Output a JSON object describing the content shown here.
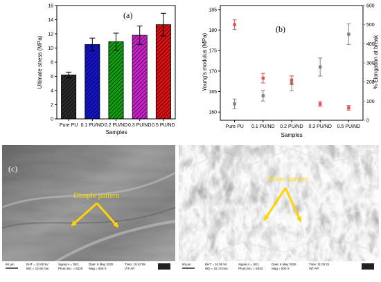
{
  "colors": {
    "pink_axis": "#e06060",
    "arrow": "#ffd400",
    "bars": [
      "#2b2b2b",
      "#1414c8",
      "#10a010",
      "#cc22cc",
      "#dd1111"
    ]
  },
  "chart_data": [
    {
      "type": "bar",
      "panel_label": "(a)",
      "categories": [
        "Pure PU",
        "0.1 PU/ND",
        "0.2 PU/ND",
        "0.3 PU/ND",
        "0.5 PU/ND"
      ],
      "values": [
        6.2,
        10.5,
        10.9,
        11.8,
        13.3
      ],
      "errors": [
        0.4,
        0.9,
        1.2,
        1.3,
        1.6
      ],
      "xlabel": "Samples",
      "ylabel": "Ultimate stress (MPa)",
      "ylim": [
        0,
        16
      ],
      "yticks": [
        "0",
        "2",
        "4",
        "6",
        "8",
        "10",
        "12",
        "14",
        "16"
      ],
      "grid": false
    },
    {
      "type": "scatter",
      "panel_label": "(b)",
      "categories": [
        "Pure PU",
        "0.1 PU/ND",
        "0.2 PU/ND",
        "0.3 PU/ND",
        "0.5 PU/ND"
      ],
      "xlabel": "Samples",
      "ylabel_left": "Young's modulus (MPa)",
      "ylabel_right": "% Elongation at break",
      "ylim_left": [
        158,
        186
      ],
      "ylim_right": [
        0,
        600
      ],
      "yticks_left": [
        "160",
        "165",
        "170",
        "175",
        "180",
        "185"
      ],
      "yticks_right": [
        "0",
        "100",
        "200",
        "300",
        "400",
        "500",
        "600"
      ],
      "series": [
        {
          "values": [
            162,
            164,
            167,
            171,
            179
          ],
          "errors": [
            1.2,
            1.3,
            1.8,
            2.2,
            2.5
          ],
          "color": "#808080",
          "axis": "left"
        },
        {
          "values": [
            500,
            220,
            210,
            85,
            65
          ],
          "errors": [
            25,
            25,
            22,
            12,
            12
          ],
          "color": "#e05050",
          "axis": "right"
        }
      ]
    }
  ],
  "sem": [
    {
      "panel_label": "(c)",
      "annotation": "Dimple pattern",
      "scale": "50 µm",
      "info_lines": [
        "EHT = 10.00 kV",
        "WD = 16.06 mm",
        "Signal A = SE1",
        "Photo No. = 8329",
        "Date: 6 May 2025",
        "Mag = 500 X",
        "Time: 10:42:08",
        "VIT-AP"
      ]
    },
    {
      "panel_label": "(d)",
      "annotation": "River pattern",
      "scale": "50 µm",
      "info_lines": [
        "EHT = 10.00 kV",
        "WD = 15.74 mm",
        "Signal A = SE1",
        "Photo No. = 8343",
        "Date: 6 May 2025",
        "Mag = 500 X",
        "Time: 11:02:21",
        "VIT-AP"
      ]
    }
  ]
}
